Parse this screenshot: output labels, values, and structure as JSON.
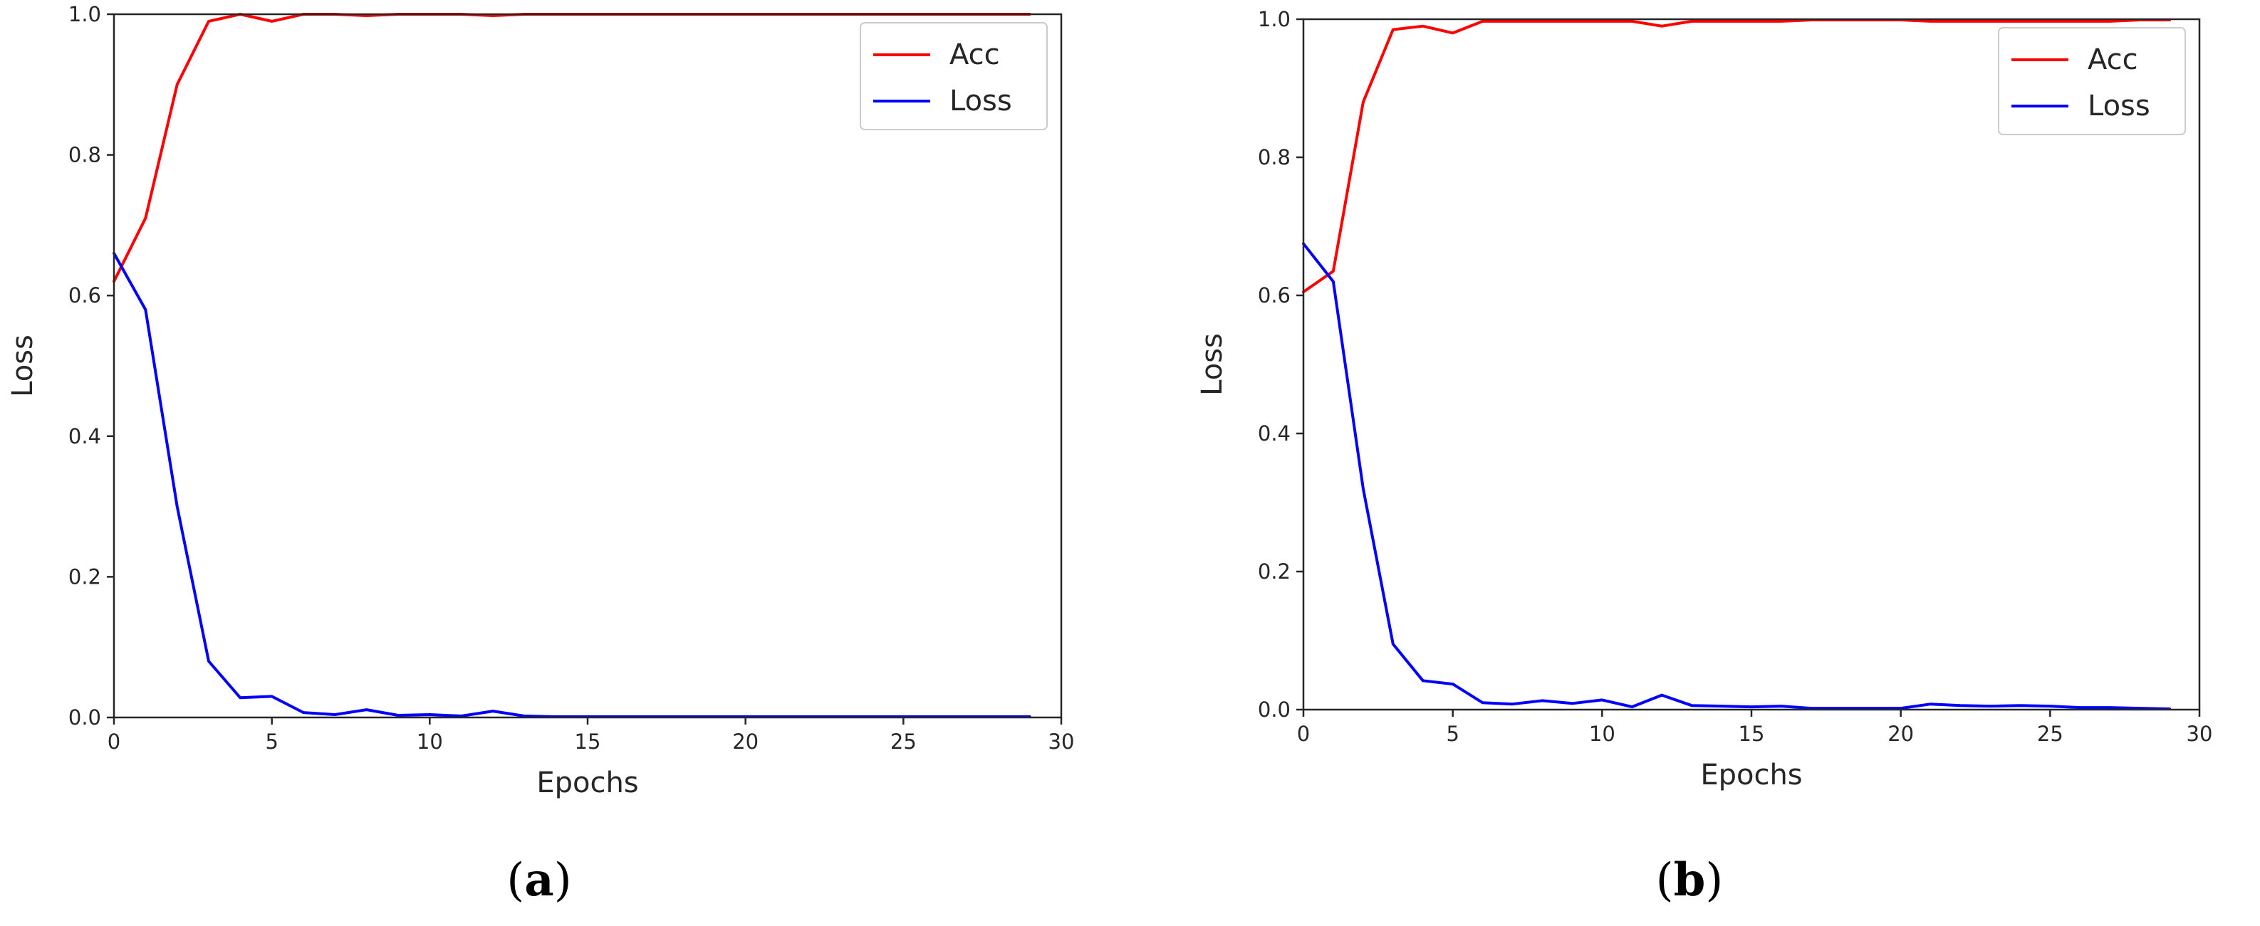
{
  "colors": {
    "acc": "#ff0000",
    "loss": "#0000ff",
    "axes": "#262626"
  },
  "captions": [
    {
      "open": "(",
      "letter": "a",
      "close": ")"
    },
    {
      "open": "(",
      "letter": "b",
      "close": ")"
    }
  ],
  "chart_data": [
    {
      "type": "line",
      "xlabel": "Epochs",
      "ylabel": "Loss",
      "xlim": [
        0,
        30
      ],
      "ylim": [
        0,
        1.0
      ],
      "xticks": [
        "0",
        "5",
        "10",
        "15",
        "20",
        "25",
        "30"
      ],
      "yticks": [
        "0.0",
        "0.2",
        "0.4",
        "0.6",
        "0.8",
        "1.0"
      ],
      "grid": false,
      "legend": "top-right",
      "x": [
        0,
        1,
        2,
        3,
        4,
        5,
        6,
        7,
        8,
        9,
        10,
        11,
        12,
        13,
        14,
        15,
        16,
        17,
        18,
        19,
        20,
        21,
        22,
        23,
        24,
        25,
        26,
        27,
        28,
        29
      ],
      "series": [
        {
          "name": "Acc",
          "color": "#ff0000",
          "values": [
            0.62,
            0.71,
            0.9,
            0.99,
            1.0,
            0.99,
            1.0,
            1.0,
            0.998,
            1.0,
            1.0,
            1.0,
            0.998,
            1.0,
            1.0,
            1.0,
            1.0,
            1.0,
            1.0,
            1.0,
            1.0,
            1.0,
            1.0,
            1.0,
            1.0,
            1.0,
            1.0,
            1.0,
            1.0,
            1.0
          ]
        },
        {
          "name": "Loss",
          "color": "#0000ff",
          "values": [
            0.66,
            0.58,
            0.3,
            0.08,
            0.028,
            0.03,
            0.007,
            0.004,
            0.011,
            0.003,
            0.004,
            0.002,
            0.009,
            0.002,
            0.001,
            0.001,
            0.001,
            0.001,
            0.001,
            0.001,
            0.001,
            0.001,
            0.001,
            0.001,
            0.001,
            0.001,
            0.001,
            0.001,
            0.001,
            0.001
          ]
        }
      ]
    },
    {
      "type": "line",
      "xlabel": "Epochs",
      "ylabel": "Loss",
      "xlim": [
        0,
        30
      ],
      "ylim": [
        0,
        1.0
      ],
      "xticks": [
        "0",
        "5",
        "10",
        "15",
        "20",
        "25",
        "30"
      ],
      "yticks": [
        "0.0",
        "0.2",
        "0.4",
        "0.6",
        "0.8",
        "1.0"
      ],
      "grid": false,
      "legend": "top-right",
      "x": [
        0,
        1,
        2,
        3,
        4,
        5,
        6,
        7,
        8,
        9,
        10,
        11,
        12,
        13,
        14,
        15,
        16,
        17,
        18,
        19,
        20,
        21,
        22,
        23,
        24,
        25,
        26,
        27,
        28,
        29
      ],
      "series": [
        {
          "name": "Acc",
          "color": "#ff0000",
          "values": [
            0.605,
            0.635,
            0.88,
            0.985,
            0.99,
            0.98,
            0.997,
            0.997,
            0.997,
            0.997,
            0.997,
            0.997,
            0.99,
            0.997,
            0.997,
            0.997,
            0.997,
            0.999,
            0.999,
            0.999,
            0.999,
            0.997,
            0.997,
            0.997,
            0.997,
            0.997,
            0.997,
            0.997,
            0.999,
            0.999
          ]
        },
        {
          "name": "Loss",
          "color": "#0000ff",
          "values": [
            0.675,
            0.62,
            0.32,
            0.095,
            0.042,
            0.037,
            0.01,
            0.008,
            0.013,
            0.009,
            0.014,
            0.004,
            0.021,
            0.006,
            0.005,
            0.004,
            0.005,
            0.002,
            0.002,
            0.002,
            0.002,
            0.008,
            0.006,
            0.005,
            0.006,
            0.005,
            0.003,
            0.003,
            0.002,
            0.001
          ]
        }
      ]
    }
  ]
}
